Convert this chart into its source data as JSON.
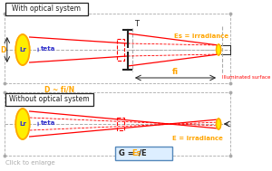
{
  "bg_color": "#ffffff",
  "top_box_text": "With optical system",
  "bottom_box_text": "Without optical system",
  "label_D": "D",
  "label_Lr": "Lr",
  "label_teta_top": "teta",
  "label_teta_bot": "teta",
  "label_fi": "fi",
  "label_Es": "Es = irradiance",
  "label_E": "E = irradiance",
  "label_D_eq": "D ~ fi/N",
  "label_T": "T",
  "label_illuminated": "Illuminated surface",
  "label_click": "Click to enlarge",
  "orange": "#FFA500",
  "red": "#FF0000",
  "gray": "#aaaaaa",
  "dark": "#222222",
  "yellow_fill": "#FFEE00",
  "blue_label": "#3333cc"
}
